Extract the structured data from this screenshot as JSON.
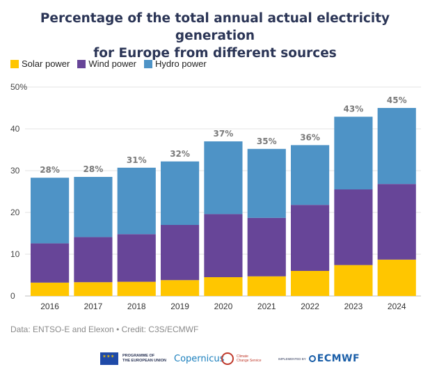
{
  "chart_data": {
    "type": "bar",
    "stacked": true,
    "title": "Percentage of the total annual actual electricity generation for Europe from different sources",
    "title_lines": [
      "Percentage of the total annual actual electricity generation",
      "for Europe from different sources"
    ],
    "categories": [
      "2016",
      "2017",
      "2018",
      "2019",
      "2020",
      "2021",
      "2022",
      "2023",
      "2024"
    ],
    "series": [
      {
        "name": "Solar power",
        "color": "#ffc600",
        "values": [
          3.2,
          3.3,
          3.4,
          3.8,
          4.5,
          4.7,
          6.0,
          7.4,
          8.7
        ]
      },
      {
        "name": "Wind power",
        "color": "#674598",
        "values": [
          9.4,
          10.8,
          11.4,
          13.2,
          15.1,
          14.0,
          15.8,
          18.1,
          18.1
        ]
      },
      {
        "name": "Hydro power",
        "color": "#4e93c6",
        "values": [
          15.7,
          14.4,
          15.9,
          15.2,
          17.4,
          16.5,
          14.3,
          17.4,
          18.2
        ]
      }
    ],
    "total_labels": [
      "28%",
      "28%",
      "31%",
      "32%",
      "37%",
      "35%",
      "36%",
      "43%",
      "45%"
    ],
    "yticks": [
      0,
      10,
      20,
      30,
      40,
      50
    ],
    "ytick_labels": [
      "0",
      "10",
      "20",
      "30",
      "40",
      "50%"
    ],
    "ylim": [
      0,
      50
    ],
    "grid": true,
    "legend_position": "top-left"
  },
  "legend": {
    "solar": "Solar power",
    "wind": "Wind power",
    "hydro": "Hydro power"
  },
  "source": "Data: ENTSO-E and Elexon • Credit: C3S/ECMWF",
  "logos": {
    "eu_line1": "PROGRAMME OF",
    "eu_line2": "THE EUROPEAN UNION",
    "copernicus": "Copernicus",
    "c3s_line1": "Climate",
    "c3s_line2": "Change Service",
    "implemented_by": "IMPLEMENTED BY",
    "ecmwf": "ECMWF"
  },
  "colors": {
    "title": "#2b3556",
    "solar": "#ffc600",
    "wind": "#674598",
    "hydro": "#4e93c6",
    "total_label": "#7a7a7a",
    "grid": "#e3e3e3"
  }
}
